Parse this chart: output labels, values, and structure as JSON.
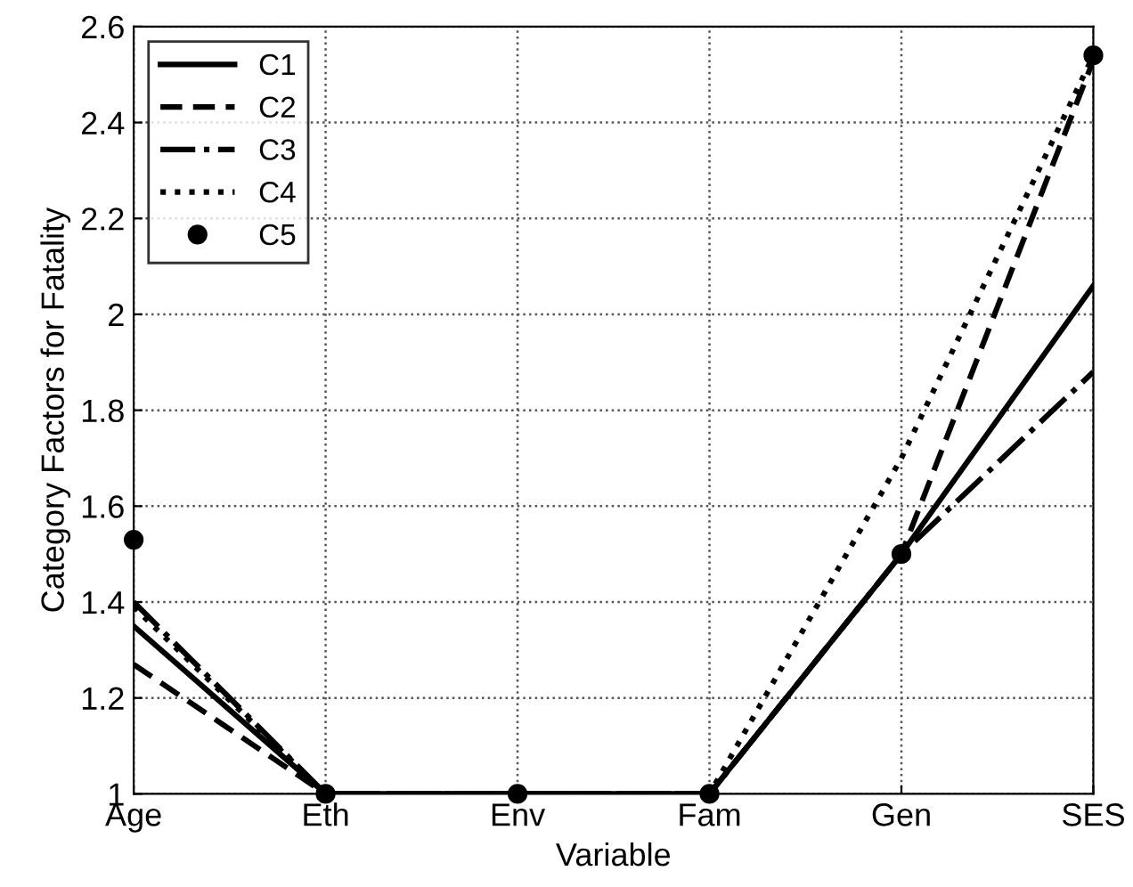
{
  "chart_data": {
    "type": "line",
    "xlabel": "Variable",
    "ylabel": "Category Factors for Fatality",
    "categories": [
      "Age",
      "Eth",
      "Env",
      "Fam",
      "Gen",
      "SES"
    ],
    "series": [
      {
        "name": "C1",
        "color": "#000000",
        "line_style": "solid",
        "values": [
          1.35,
          1,
          1,
          1,
          1.5,
          2.06
        ]
      },
      {
        "name": "C2",
        "color": "#000000",
        "line_style": "dashed",
        "values": [
          1.27,
          1,
          1,
          1,
          1.5,
          2.53
        ]
      },
      {
        "name": "C3",
        "color": "#000000",
        "line_style": "dashdot",
        "values": [
          1.4,
          1,
          1,
          1,
          1.5,
          1.88
        ]
      },
      {
        "name": "C4",
        "color": "#000000",
        "line_style": "dotted",
        "values": [
          1.39,
          1,
          1,
          1,
          1.7,
          2.54
        ]
      },
      {
        "name": "C5",
        "color": "#000000",
        "type": "scatter",
        "marker": "circle",
        "values": [
          1.53,
          1,
          1,
          1,
          1.5,
          2.54
        ]
      }
    ],
    "ylim": [
      1,
      2.6
    ],
    "yticks": [
      1,
      1.2,
      1.4,
      1.6,
      1.8,
      2,
      2.2,
      2.4,
      2.6
    ],
    "grid": true,
    "legend": "top left"
  }
}
